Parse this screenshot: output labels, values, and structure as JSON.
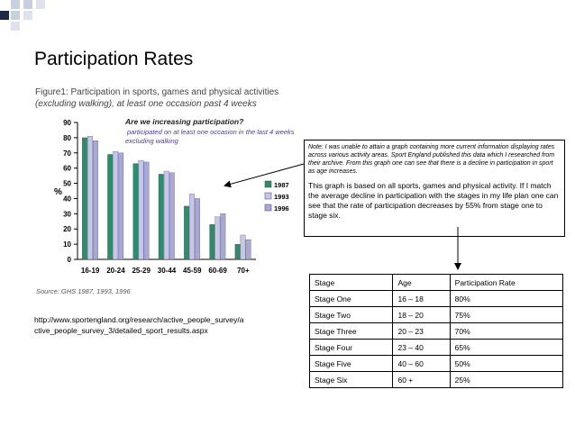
{
  "slide_title": "Participation Rates",
  "figure_caption": {
    "main": "Figure1: Participation in sports, games and physical activities",
    "italic": "(excluding walking), at least one occasion past 4 weeks"
  },
  "annotation": {
    "heading": "Are we increasing participation?",
    "sub": "participated on at least one occasion in the last 4 weeks excluding walking"
  },
  "source": "Source: GHS 1987, 1993, 1996",
  "url": "http://www.sportengland.org/research/active_people_survey/active_people_survey_3/detailed_sport_results.aspx",
  "note": {
    "small": "Note: I was unable to attain a graph containing more current information displaying rates across various activity areas. Sport England published this data which I researched from their archive. From this graph one can see that there is a decline in participation in sport as age increases.",
    "main": "This graph is based on all sports, games and physical activity. If I match the average decline in participation with the stages in my life plan one can see that the rate of participation decreases by 55% from stage one to stage six."
  },
  "table": {
    "headers": [
      "Stage",
      "Age",
      "Participation Rate"
    ],
    "rows": [
      [
        "Stage One",
        "16 – 18",
        "80%"
      ],
      [
        "Stage Two",
        "18 – 20",
        "75%"
      ],
      [
        "Stage Three",
        "20 – 23",
        "70%"
      ],
      [
        "Stage Four",
        "23 – 40",
        "65%"
      ],
      [
        "Stage Five",
        "40 – 60",
        "50%"
      ],
      [
        "Stage Six",
        "60 +",
        "25%"
      ]
    ]
  },
  "chart_data": {
    "type": "bar",
    "categories": [
      "16-19",
      "20-24",
      "25-29",
      "30-44",
      "45-59",
      "60-69",
      "70+"
    ],
    "series": [
      {
        "name": "1987",
        "values": [
          80,
          69,
          63,
          56,
          35,
          23,
          10
        ],
        "color": "#2e8b6e"
      },
      {
        "name": "1993",
        "values": [
          81,
          71,
          65,
          58,
          43,
          28,
          16
        ],
        "color": "#c6c6ec"
      },
      {
        "name": "1996",
        "values": [
          78,
          70,
          64,
          57,
          40,
          30,
          13
        ],
        "color": "#a8a8d8"
      }
    ],
    "ylabel": "%",
    "ylim": [
      0,
      90
    ],
    "yticks": [
      0,
      10,
      20,
      30,
      40,
      50,
      60,
      70,
      80,
      90
    ],
    "legend_position": "right"
  }
}
